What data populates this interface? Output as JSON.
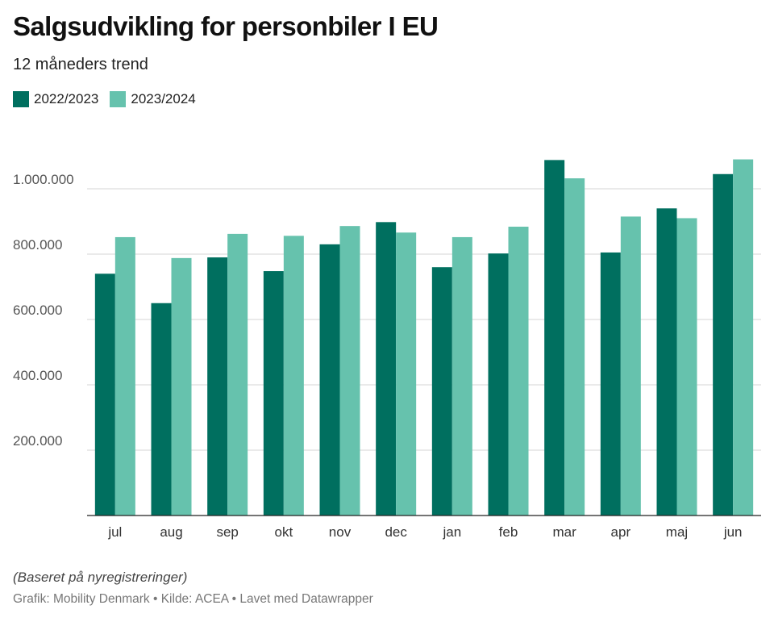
{
  "header": {
    "title": "Salgsudvikling for personbiler I EU",
    "subtitle": "12 måneders trend"
  },
  "footer": {
    "note": "(Baseret på nyregistreringer)",
    "credit": "Grafik: Mobility Denmark • Kilde: ACEA • Lavet med Datawrapper"
  },
  "chart_data": {
    "type": "bar",
    "title": "Salgsudvikling for personbiler I EU",
    "subtitle": "12 måneders trend",
    "xlabel": "",
    "ylabel": "",
    "categories": [
      "jul",
      "aug",
      "sep",
      "okt",
      "nov",
      "dec",
      "jan",
      "feb",
      "mar",
      "apr",
      "maj",
      "jun"
    ],
    "series": [
      {
        "name": "2022/2023",
        "color": "#006f5f",
        "values": [
          740000,
          650000,
          790000,
          748000,
          830000,
          898000,
          760000,
          802000,
          1088000,
          805000,
          940000,
          1045000
        ]
      },
      {
        "name": "2023/2024",
        "color": "#66c2ad",
        "values": [
          852000,
          788000,
          862000,
          856000,
          886000,
          866000,
          852000,
          884000,
          1032000,
          915000,
          910000,
          1090000
        ]
      }
    ],
    "ylim": [
      0,
      1200000
    ],
    "yticks": [
      200000,
      400000,
      600000,
      800000,
      1000000
    ],
    "ytick_labels": [
      "200.000",
      "400.000",
      "600.000",
      "800.000",
      "1.000.000"
    ],
    "grid": true,
    "legend_position": "top-left"
  }
}
